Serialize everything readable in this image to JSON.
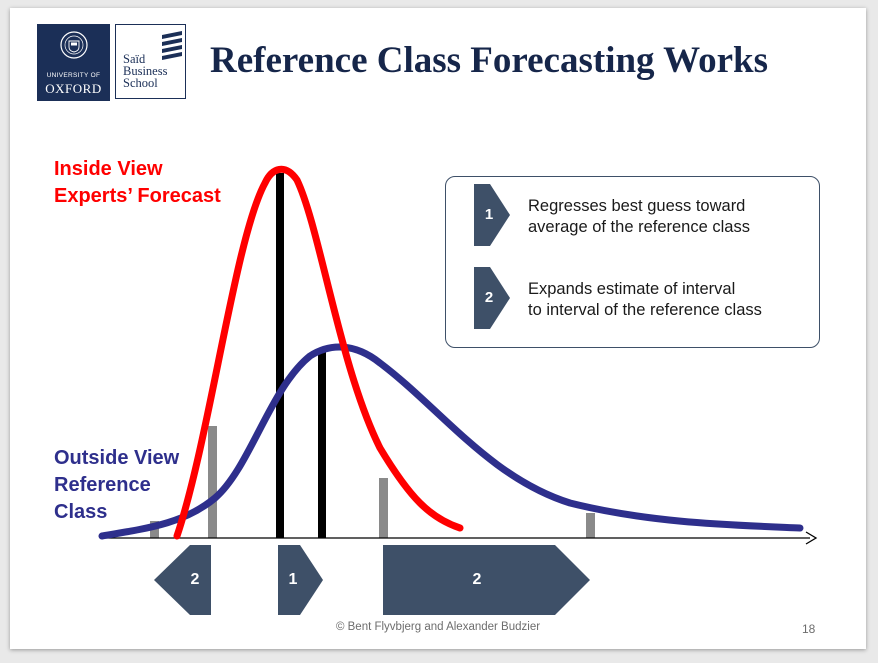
{
  "header": {
    "title": "Reference Class Forecasting Works",
    "oxford_logo": {
      "line1": "UNIVERSITY OF",
      "line2": "OXFORD"
    },
    "said_logo": {
      "line1": "Saïd",
      "line2": "Business",
      "line3": "School"
    }
  },
  "labels": {
    "inside_view": [
      "Inside View",
      "Experts’ Forecast"
    ],
    "outside_view": [
      "Outside View",
      "Reference",
      "Class"
    ]
  },
  "legend": [
    {
      "number": "1",
      "line1": "Regresses best guess toward",
      "line2": "average of the reference class"
    },
    {
      "number": "2",
      "line1": "Expands estimate of interval",
      "line2": "to interval of the reference class"
    }
  ],
  "axis_arrows": [
    {
      "number": "2",
      "direction": "left"
    },
    {
      "number": "1",
      "direction": "right"
    },
    {
      "number": "2",
      "direction": "right"
    }
  ],
  "colors": {
    "inside_curve": "#ff0000",
    "outside_curve": "#2e2f8c",
    "arrow_fill": "#3e5068",
    "title": "#16264a"
  },
  "footer": {
    "copyright": "© Bent Flyvbjerg and Alexander Budzier",
    "page_number": "18"
  }
}
